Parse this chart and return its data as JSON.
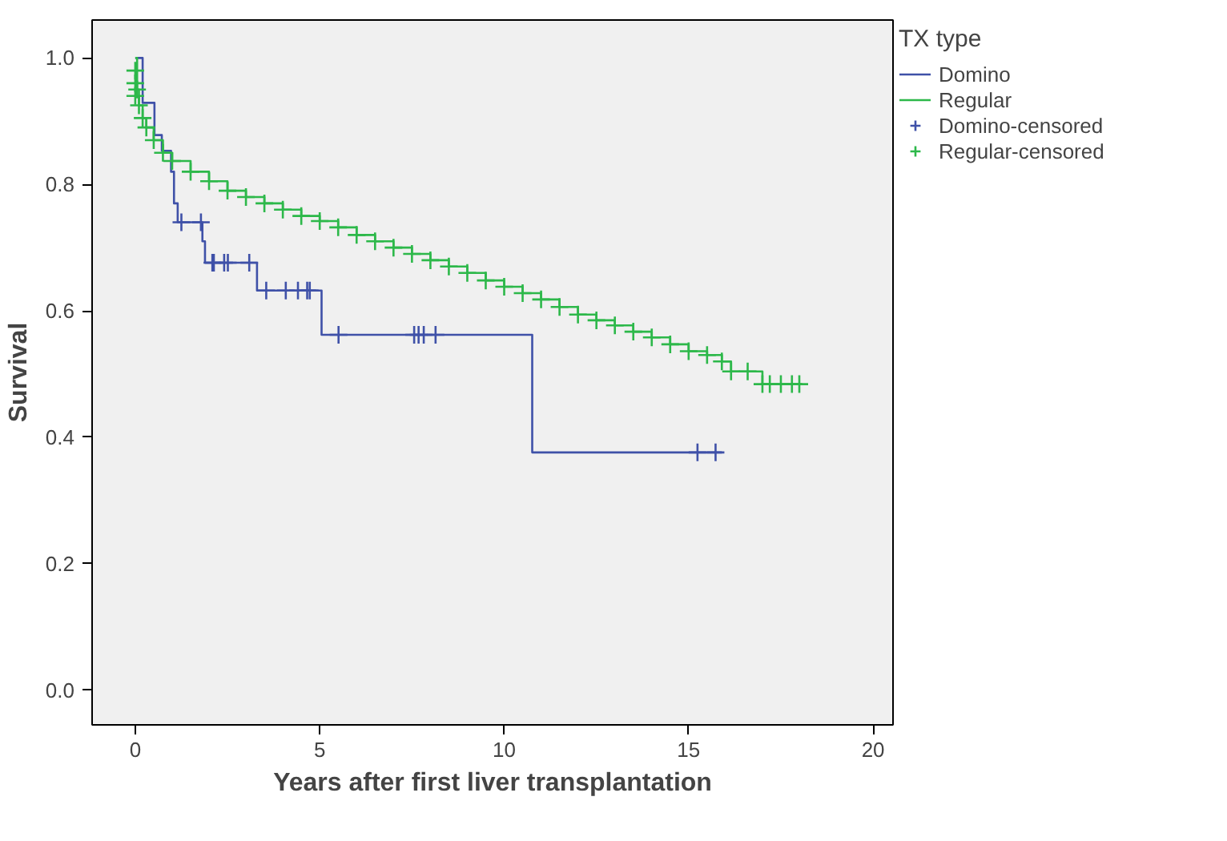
{
  "chart_data": {
    "type": "step",
    "xlabel": "Years after first liver transplantation",
    "ylabel": "Survival",
    "legend_title": "TX type",
    "legend": "top right",
    "grid": false,
    "xlim": [
      -1.17,
      20.54
    ],
    "ylim": [
      -0.055,
      1.06
    ],
    "xticks": [
      0,
      5,
      10,
      15,
      20
    ],
    "yticks": [
      {
        "value": 0,
        "label": "0.0"
      },
      {
        "value": 0.2,
        "label": "0.2"
      },
      {
        "value": 0.4,
        "label": "0.4"
      },
      {
        "value": 0.6,
        "label": "0.6"
      },
      {
        "value": 0.8,
        "label": "0.8"
      },
      {
        "value": 1,
        "label": "1.0"
      }
    ],
    "series": [
      {
        "name": "Domino",
        "color": "#3f51a8",
        "x": [
          0,
          0.2,
          0.52,
          0.72,
          0.97,
          1.05,
          1.15,
          1.82,
          1.89,
          3.3,
          5.05,
          10.76,
          15.9
        ],
        "values": [
          1.0,
          0.929,
          0.878,
          0.853,
          0.82,
          0.77,
          0.74,
          0.71,
          0.676,
          0.632,
          0.562,
          0.376,
          0.376
        ]
      },
      {
        "name": "Regular",
        "color": "#2db84a",
        "x": [
          0,
          0.05,
          0.1,
          0.2,
          0.3,
          0.5,
          0.75,
          1,
          1.5,
          2,
          2.5,
          3,
          3.5,
          4,
          4.5,
          5,
          5.5,
          6,
          6.5,
          7,
          7.5,
          8,
          8.5,
          9,
          9.5,
          10,
          10.5,
          11,
          11.5,
          12,
          12.5,
          13,
          13.5,
          14,
          14.5,
          15,
          15.5,
          15.9,
          16.15,
          17,
          18.08
        ],
        "values": [
          1.0,
          0.95,
          0.925,
          0.905,
          0.89,
          0.87,
          0.85,
          0.837,
          0.82,
          0.805,
          0.79,
          0.78,
          0.77,
          0.76,
          0.75,
          0.742,
          0.732,
          0.72,
          0.71,
          0.7,
          0.69,
          0.68,
          0.67,
          0.66,
          0.648,
          0.638,
          0.628,
          0.618,
          0.606,
          0.594,
          0.585,
          0.577,
          0.567,
          0.558,
          0.547,
          0.536,
          0.53,
          0.52,
          0.504,
          0.484,
          0.484
        ]
      },
      {
        "name": "Domino-censored",
        "color": "#3f51a8",
        "type": "scatter",
        "marker": "cross",
        "x": [
          1.25,
          1.78,
          2.09,
          2.13,
          2.41,
          2.51,
          3.09,
          3.55,
          4.08,
          4.41,
          4.66,
          4.73,
          5.51,
          7.56,
          7.68,
          7.82,
          8.14,
          15.24,
          15.73
        ],
        "values": [
          0.74,
          0.74,
          0.676,
          0.676,
          0.676,
          0.676,
          0.676,
          0.632,
          0.632,
          0.632,
          0.632,
          0.632,
          0.562,
          0.562,
          0.562,
          0.562,
          0.562,
          0.376,
          0.376
        ]
      },
      {
        "name": "Regular-censored",
        "color": "#2db84a",
        "type": "scatter",
        "marker": "cross",
        "x": [
          0,
          0,
          0,
          0.05,
          0.1,
          0.2,
          0.3,
          0.5,
          0.75,
          1,
          1.5,
          2,
          2.5,
          3,
          3.5,
          4,
          4.5,
          5,
          5.5,
          6,
          6.5,
          7,
          7.5,
          8,
          8.5,
          9,
          9.5,
          10,
          10.5,
          11,
          11.5,
          12,
          12.5,
          13,
          13.5,
          14,
          14.5,
          15,
          15.5,
          15.9,
          16.15,
          16.6,
          17,
          17.2,
          17.5,
          17.8,
          18.0
        ],
        "values": [
          0.98,
          0.96,
          0.94,
          0.95,
          0.925,
          0.905,
          0.89,
          0.87,
          0.85,
          0.837,
          0.82,
          0.805,
          0.79,
          0.78,
          0.77,
          0.76,
          0.75,
          0.742,
          0.732,
          0.72,
          0.71,
          0.7,
          0.69,
          0.68,
          0.67,
          0.66,
          0.648,
          0.638,
          0.628,
          0.618,
          0.606,
          0.594,
          0.585,
          0.577,
          0.567,
          0.558,
          0.547,
          0.536,
          0.53,
          0.52,
          0.504,
          0.504,
          0.484,
          0.484,
          0.484,
          0.484,
          0.484
        ]
      }
    ]
  }
}
